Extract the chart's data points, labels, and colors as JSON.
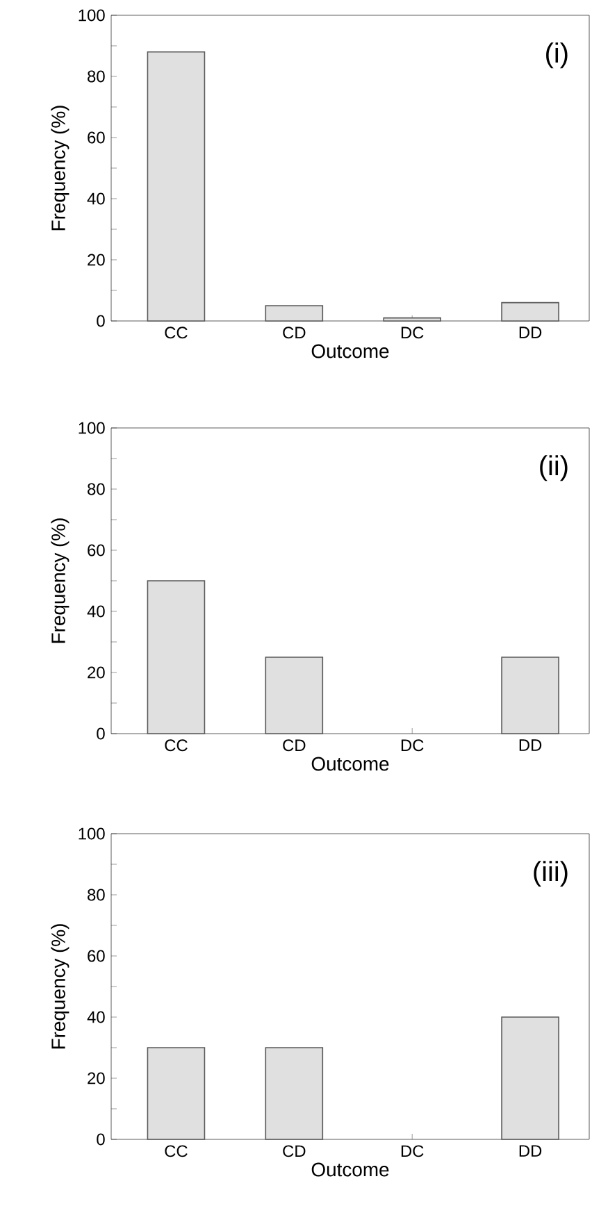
{
  "chart_data": [
    {
      "type": "bar",
      "categories": [
        "CC",
        "CD",
        "DC",
        "DD"
      ],
      "values": [
        88,
        5,
        1,
        6
      ],
      "color": "#e0e0e0",
      "xlabel": "Outcome",
      "ylabel": "Frequency (%)",
      "ylim": [
        0,
        100
      ],
      "yticks": [
        0,
        {
          "value": 10,
          "label": null
        },
        20,
        {
          "value": 30,
          "label": null
        },
        40,
        {
          "value": 50,
          "label": null
        },
        60,
        {
          "value": 70,
          "label": null
        },
        80,
        {
          "value": 90,
          "label": null
        },
        100
      ],
      "annotations": [
        "(i)"
      ]
    },
    {
      "type": "bar",
      "categories": [
        "CC",
        "CD",
        "DC",
        "DD"
      ],
      "values": [
        50,
        25,
        0,
        25
      ],
      "color": "#e0e0e0",
      "xlabel": "Outcome",
      "ylabel": "Frequency (%)",
      "ylim": [
        0,
        100
      ],
      "yticks": [
        0,
        {
          "value": 10,
          "label": null
        },
        20,
        {
          "value": 30,
          "label": null
        },
        40,
        {
          "value": 50,
          "label": null
        },
        60,
        {
          "value": 70,
          "label": null
        },
        80,
        {
          "value": 90,
          "label": null
        },
        100
      ],
      "annotations": [
        "(ii)"
      ]
    },
    {
      "type": "bar",
      "categories": [
        "CC",
        "CD",
        "DC",
        "DD"
      ],
      "values": [
        30,
        30,
        0,
        40
      ],
      "color": "#e0e0e0",
      "xlabel": "Outcome",
      "ylabel": "Frequency (%)",
      "ylim": [
        0,
        100
      ],
      "yticks": [
        0,
        {
          "value": 10,
          "label": null
        },
        20,
        {
          "value": 30,
          "label": null
        },
        40,
        {
          "value": 50,
          "label": null
        },
        60,
        {
          "value": 70,
          "label": null
        },
        80,
        {
          "value": 90,
          "label": null
        },
        100
      ],
      "annotations": [
        "(iii)"
      ]
    }
  ]
}
